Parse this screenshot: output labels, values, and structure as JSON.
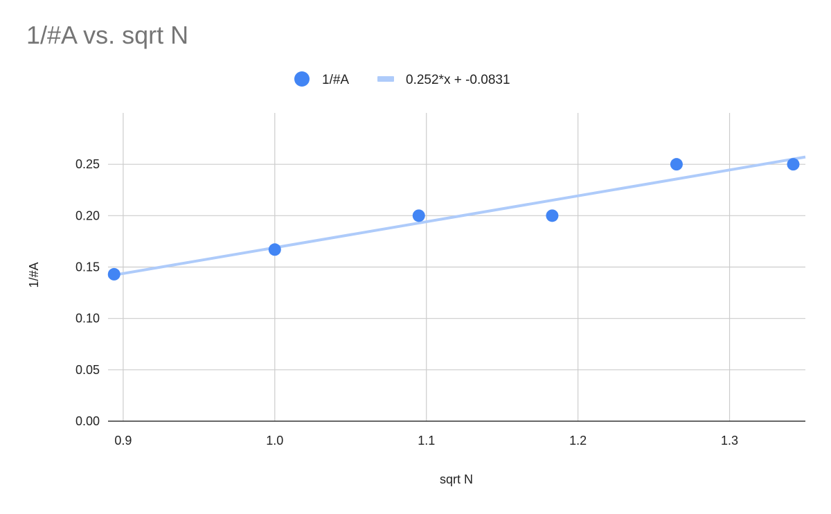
{
  "chart_data": {
    "type": "scatter",
    "title": "1/#A vs. sqrt N",
    "xlabel": "sqrt N",
    "ylabel": "1/#A",
    "xlim": [
      0.89,
      1.35
    ],
    "ylim": [
      0,
      0.3
    ],
    "x_ticks": [
      0.9,
      1.0,
      1.1,
      1.2,
      1.3
    ],
    "x_tick_labels": [
      "0.9",
      "1.0",
      "1.1",
      "1.2",
      "1.3"
    ],
    "y_ticks": [
      0,
      0.05,
      0.1,
      0.15,
      0.2,
      0.25
    ],
    "y_tick_labels": [
      "0.00",
      "0.05",
      "0.10",
      "0.15",
      "0.20",
      "0.25"
    ],
    "grid": true,
    "legend_position": "top",
    "series": [
      {
        "name": "1/#A",
        "color": "#4285f4",
        "points": [
          {
            "x": 0.894,
            "y": 0.143
          },
          {
            "x": 1.0,
            "y": 0.167
          },
          {
            "x": 1.095,
            "y": 0.2
          },
          {
            "x": 1.183,
            "y": 0.2
          },
          {
            "x": 1.265,
            "y": 0.25
          },
          {
            "x": 1.342,
            "y": 0.25
          }
        ]
      }
    ],
    "trendline": {
      "name": "0.252*x + -0.0831",
      "slope": 0.252,
      "intercept": -0.0831,
      "color": "#aecbfa"
    }
  }
}
